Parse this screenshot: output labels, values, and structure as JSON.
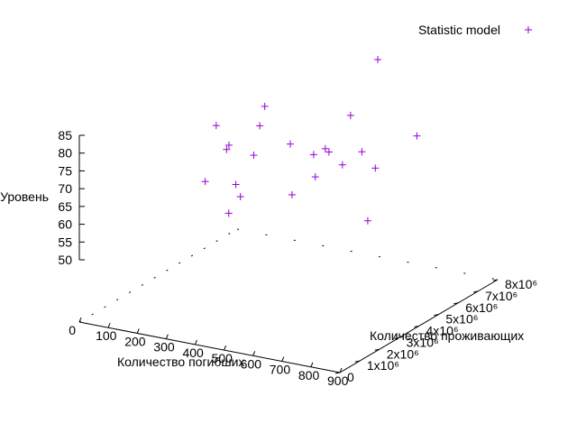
{
  "chart_data": {
    "type": "scatter",
    "title": "",
    "xlabel": "Количество погибших",
    "ylabel": "Количество проживающих",
    "zlabel": "Уровень",
    "xlim": [
      0,
      900
    ],
    "ylim": [
      0,
      8000000
    ],
    "zlim": [
      45,
      85
    ],
    "x_ticks": [
      "0",
      "100",
      "200",
      "300",
      "400",
      "500",
      "600",
      "700",
      "800",
      "900"
    ],
    "y_ticks": [
      "0",
      "1x10⁶",
      "2x10⁶",
      "3x10⁶",
      "4x10⁶",
      "5x10⁶",
      "6x10⁶",
      "7x10⁶",
      "8x10⁶"
    ],
    "z_ticks": [
      "50",
      "55",
      "60",
      "65",
      "70",
      "75",
      "80",
      "85"
    ],
    "legend_position": "top-right",
    "marker_color": "#9400d3",
    "series": [
      {
        "name": "Statistic model",
        "points": [
          {
            "x": 30,
            "y": 6500000,
            "z": 67
          },
          {
            "x": 40,
            "y": 7000000,
            "z": 60
          },
          {
            "x": 60,
            "y": 5500000,
            "z": 55
          },
          {
            "x": 100,
            "y": 6000000,
            "z": 63
          },
          {
            "x": 150,
            "y": 7200000,
            "z": 72
          },
          {
            "x": 160,
            "y": 6800000,
            "z": 68
          },
          {
            "x": 200,
            "y": 5000000,
            "z": 58
          },
          {
            "x": 180,
            "y": 6200000,
            "z": 62
          },
          {
            "x": 230,
            "y": 4200000,
            "z": 53
          },
          {
            "x": 250,
            "y": 4500000,
            "z": 57
          },
          {
            "x": 320,
            "y": 6000000,
            "z": 68
          },
          {
            "x": 360,
            "y": 5500000,
            "z": 56
          },
          {
            "x": 380,
            "y": 6300000,
            "z": 65
          },
          {
            "x": 400,
            "y": 6600000,
            "z": 66
          },
          {
            "x": 420,
            "y": 5800000,
            "z": 61
          },
          {
            "x": 440,
            "y": 6200000,
            "z": 67
          },
          {
            "x": 460,
            "y": 7000000,
            "z": 75
          },
          {
            "x": 500,
            "y": 6000000,
            "z": 65
          },
          {
            "x": 520,
            "y": 7500000,
            "z": 90
          },
          {
            "x": 540,
            "y": 6400000,
            "z": 68
          },
          {
            "x": 600,
            "y": 6200000,
            "z": 65
          },
          {
            "x": 860,
            "y": 2000000,
            "z": 68
          },
          {
            "x": 880,
            "y": 4200000,
            "z": 85
          }
        ]
      }
    ]
  }
}
